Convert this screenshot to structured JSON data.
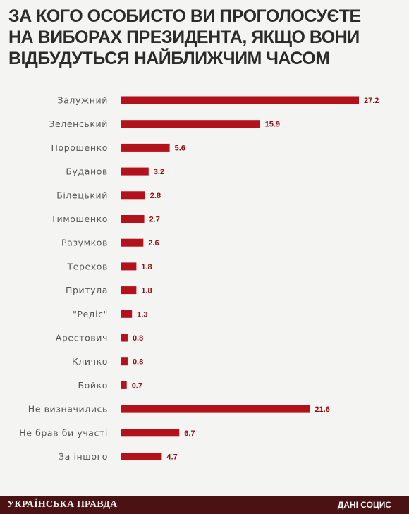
{
  "title_lines": [
    "ЗА КОГО ОСОБИСТО ВИ ПРОГОЛОСУЄТЕ",
    "НА ВИБОРАХ ПРЕЗИДЕНТА, ЯКЩО ВОНИ",
    "ВІДБУДУТЬСЯ НАЙБЛИЖЧИМ ЧАСОМ"
  ],
  "footer": {
    "brand": "УКРАЇНСЬКА ПРАВДА",
    "source": "ДАНІ СОЦИС"
  },
  "colors": {
    "bar": "#b3111b",
    "label": "#555555",
    "value": "#8e0f17",
    "background": "#f4f4f3",
    "footer": "#4a1212"
  },
  "chart_data": {
    "type": "bar",
    "orientation": "horizontal",
    "title": "ЗА КОГО ОСОБИСТО ВИ ПРОГОЛОСУЄТЕ НА ВИБОРАХ ПРЕЗИДЕНТА, ЯКЩО ВОНИ ВІДБУДУТЬСЯ НАЙБЛИЖЧИМ ЧАСОМ",
    "categories": [
      "Залужний",
      "Зеленський",
      "Порошенко",
      "Буданов",
      "Білецький",
      "Тимошенко",
      "Разумков",
      "Терехов",
      "Притула",
      "\"Редіс\"",
      "Арестович",
      "Кличко",
      "Бойко",
      "Не визначились",
      "Не брав би участі",
      "За іншого"
    ],
    "values": [
      27.2,
      15.9,
      5.6,
      3.2,
      2.8,
      2.7,
      2.6,
      1.8,
      1.8,
      1.3,
      0.8,
      0.8,
      0.7,
      21.6,
      6.7,
      4.7
    ],
    "value_labels": [
      "27.2",
      "15.9",
      "5.6",
      "3.2",
      "2.8",
      "2.7",
      "2.6",
      "1.8",
      "1.8",
      "1.3",
      "0.8",
      "0.8",
      "0.7",
      "21.6",
      "6.7",
      "4.7"
    ],
    "xlabel": "",
    "ylabel": "",
    "xlim": [
      0,
      27.2
    ],
    "grid": false,
    "legend": "none"
  }
}
